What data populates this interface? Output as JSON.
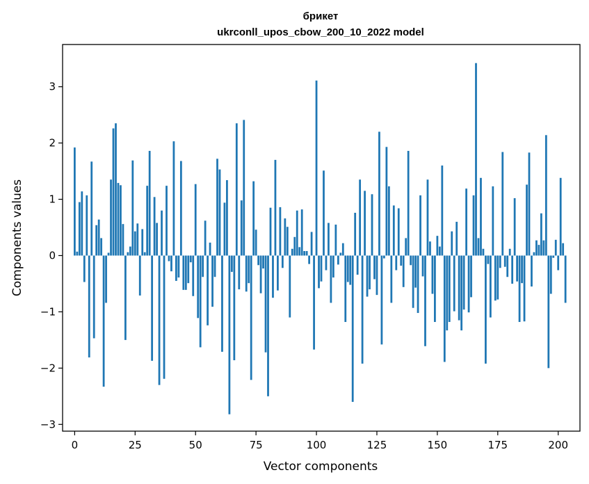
{
  "chart_data": {
    "type": "bar",
    "title": "брикет",
    "subtitle": "ukrconll_upos_cbow_200_10_2022 model",
    "xlabel": "Vector components",
    "ylabel": "Components values",
    "xlim": [
      -5,
      209
    ],
    "ylim": [
      -3.12,
      3.75
    ],
    "xticks": [
      0,
      25,
      50,
      75,
      100,
      125,
      150,
      175,
      200
    ],
    "yticks": [
      -3,
      -2,
      -1,
      0,
      1,
      2,
      3
    ],
    "bar_color": "#1f77b4",
    "grid": false,
    "legend": "none",
    "values": [
      1.92,
      0.07,
      0.95,
      1.14,
      -0.47,
      1.07,
      -1.81,
      1.67,
      -1.47,
      0.54,
      0.64,
      0.31,
      -2.33,
      -0.84,
      0.05,
      1.35,
      2.26,
      2.35,
      1.29,
      1.25,
      0.56,
      -1.5,
      0.06,
      0.16,
      1.69,
      0.43,
      0.57,
      -0.71,
      0.47,
      0.06,
      1.24,
      1.86,
      -1.87,
      1.04,
      0.58,
      -2.3,
      0.8,
      -2.19,
      1.24,
      -0.1,
      -0.28,
      2.03,
      -0.45,
      -0.39,
      1.68,
      -0.61,
      -0.61,
      -0.49,
      -0.12,
      -0.72,
      1.27,
      -1.11,
      -1.63,
      -0.38,
      0.62,
      -1.24,
      0.23,
      -0.91,
      -0.38,
      1.72,
      1.53,
      -1.71,
      0.94,
      1.34,
      -2.82,
      -0.29,
      -1.86,
      2.35,
      -0.6,
      0.98,
      2.41,
      -0.64,
      -0.49,
      -2.21,
      1.32,
      0.46,
      -0.17,
      -0.67,
      -0.23,
      -1.72,
      -2.5,
      0.85,
      -0.75,
      1.7,
      -0.62,
      0.86,
      -0.22,
      0.66,
      0.51,
      -1.1,
      0.12,
      0.33,
      0.8,
      0.15,
      0.82,
      0.08,
      0.08,
      -0.15,
      0.42,
      -1.67,
      3.11,
      -0.58,
      -0.46,
      1.51,
      -0.26,
      0.58,
      -0.84,
      -0.39,
      0.55,
      -0.16,
      0.05,
      0.22,
      -1.18,
      -0.47,
      -0.52,
      -2.6,
      0.76,
      -0.34,
      1.35,
      -1.92,
      1.15,
      -0.73,
      -0.6,
      1.09,
      -0.42,
      -0.7,
      2.2,
      -1.58,
      -0.05,
      1.93,
      1.23,
      -0.84,
      0.89,
      -0.26,
      0.84,
      -0.18,
      -0.56,
      0.31,
      1.86,
      -0.17,
      -0.93,
      -0.57,
      -1.02,
      1.07,
      -0.37,
      -1.61,
      1.35,
      0.25,
      -0.68,
      -1.18,
      0.35,
      0.16,
      1.6,
      -1.89,
      -1.33,
      -1.18,
      0.43,
      -0.99,
      0.6,
      -1.15,
      -1.33,
      -0.96,
      1.19,
      -1.01,
      -0.74,
      1.07,
      3.42,
      0.31,
      1.38,
      0.12,
      -1.92,
      -0.15,
      -1.1,
      1.23,
      -0.8,
      -0.78,
      -0.22,
      1.84,
      -0.2,
      -0.38,
      0.12,
      -0.5,
      1.02,
      -0.46,
      -1.18,
      -0.49,
      -1.17,
      1.26,
      1.83,
      -0.55,
      0.06,
      0.27,
      0.19,
      0.75,
      0.27,
      2.14,
      -2.0,
      -0.68,
      -0.04,
      0.28,
      -0.26,
      1.38,
      0.22,
      -0.84
    ]
  }
}
